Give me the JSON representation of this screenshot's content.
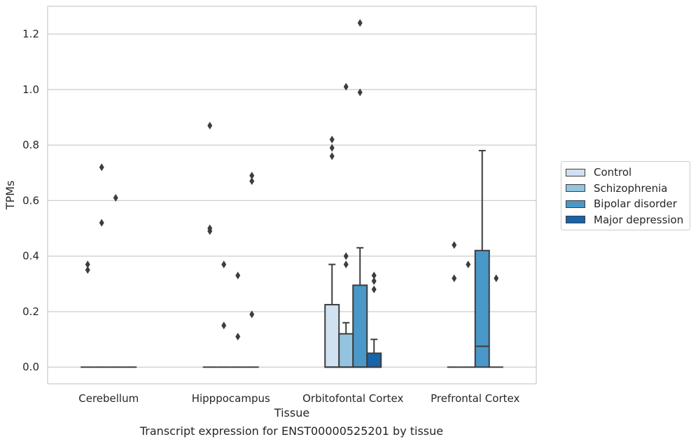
{
  "chart_data": {
    "type": "box",
    "title": "",
    "caption": "Transcript expression for ENST00000525201 by tissue",
    "xlabel": "Tissue",
    "ylabel": "TPMs",
    "ylim": [
      -0.06,
      1.3
    ],
    "yticks": [
      "0.0",
      "0.2",
      "0.4",
      "0.6",
      "0.8",
      "1.0",
      "1.2"
    ],
    "ytick_values": [
      0.0,
      0.2,
      0.4,
      0.6,
      0.8,
      1.0,
      1.2
    ],
    "grid": "horizontal",
    "legend_position": "right",
    "categories": [
      "Cerebellum",
      "Hipppocampus",
      "Orbitofontal Cortex",
      "Prefrontal Cortex"
    ],
    "series": [
      {
        "name": "Control",
        "color": "#d0e1f2",
        "boxes": [
          {
            "q1": 0,
            "median": 0,
            "q3": 0,
            "whisker_low": 0,
            "whisker_high": 0,
            "outliers": [
              0.35,
              0.37
            ]
          },
          {
            "q1": 0,
            "median": 0,
            "q3": 0,
            "whisker_low": 0,
            "whisker_high": 0,
            "outliers": [
              0.49,
              0.5,
              0.87
            ]
          },
          {
            "q1": 0,
            "median": 0,
            "q3": 0.225,
            "whisker_low": 0,
            "whisker_high": 0.37,
            "outliers": [
              0.76,
              0.79,
              0.82
            ]
          },
          {
            "q1": 0,
            "median": 0,
            "q3": 0,
            "whisker_low": 0,
            "whisker_high": 0,
            "outliers": [
              0.32,
              0.44
            ]
          }
        ]
      },
      {
        "name": "Schizophrenia",
        "color": "#94c4df",
        "boxes": [
          {
            "q1": 0,
            "median": 0,
            "q3": 0,
            "whisker_low": 0,
            "whisker_high": 0,
            "outliers": [
              0.52,
              0.72
            ]
          },
          {
            "q1": 0,
            "median": 0,
            "q3": 0,
            "whisker_low": 0,
            "whisker_high": 0,
            "outliers": [
              0.15,
              0.37
            ]
          },
          {
            "q1": 0,
            "median": 0,
            "q3": 0.12,
            "whisker_low": 0,
            "whisker_high": 0.16,
            "outliers": [
              0.37,
              0.4,
              1.01
            ]
          },
          {
            "q1": 0,
            "median": 0,
            "q3": 0,
            "whisker_low": 0,
            "whisker_high": 0,
            "outliers": [
              0.37
            ]
          }
        ]
      },
      {
        "name": "Bipolar disorder",
        "color": "#4a98c9",
        "boxes": [
          {
            "q1": 0,
            "median": 0,
            "q3": 0,
            "whisker_low": 0,
            "whisker_high": 0,
            "outliers": [
              0.61
            ]
          },
          {
            "q1": 0,
            "median": 0,
            "q3": 0,
            "whisker_low": 0,
            "whisker_high": 0,
            "outliers": [
              0.11,
              0.33
            ]
          },
          {
            "q1": 0,
            "median": 0,
            "q3": 0.295,
            "whisker_low": 0,
            "whisker_high": 0.43,
            "outliers": [
              0.99,
              1.24
            ]
          },
          {
            "q1": 0,
            "median": 0.075,
            "q3": 0.42,
            "whisker_low": 0,
            "whisker_high": 0.78,
            "outliers": []
          }
        ]
      },
      {
        "name": "Major depression",
        "color": "#1764ab",
        "boxes": [
          {
            "q1": 0,
            "median": 0,
            "q3": 0,
            "whisker_low": 0,
            "whisker_high": 0,
            "outliers": []
          },
          {
            "q1": 0,
            "median": 0,
            "q3": 0,
            "whisker_low": 0,
            "whisker_high": 0,
            "outliers": [
              0.19,
              0.67,
              0.69
            ]
          },
          {
            "q1": 0,
            "median": 0,
            "q3": 0.05,
            "whisker_low": 0,
            "whisker_high": 0.1,
            "outliers": [
              0.28,
              0.31,
              0.33
            ]
          },
          {
            "q1": 0,
            "median": 0,
            "q3": 0,
            "whisker_low": 0,
            "whisker_high": 0,
            "outliers": [
              0.32
            ]
          }
        ]
      }
    ]
  }
}
